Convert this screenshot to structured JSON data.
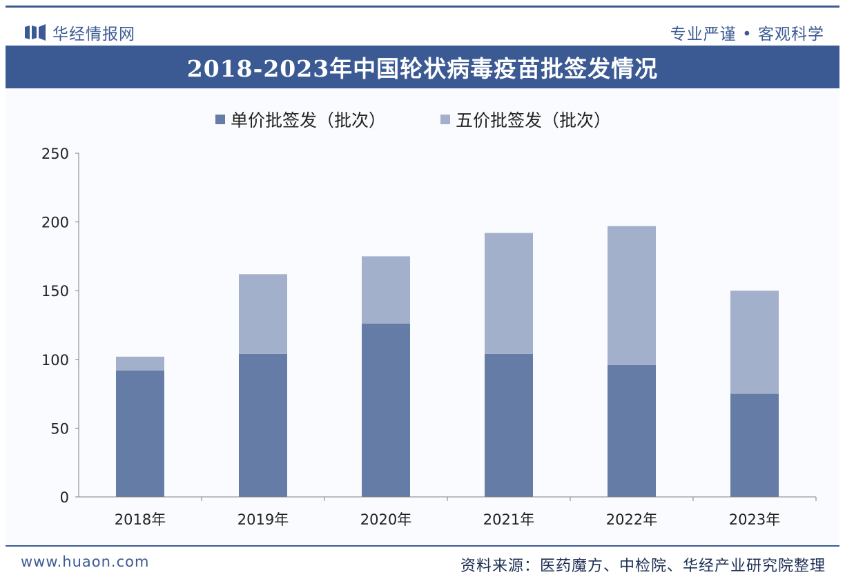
{
  "header": {
    "brand": "华经情报网",
    "slogan": "专业严谨 • 客观科学"
  },
  "colors": {
    "primary": "#3b5a94",
    "monovalent": "#657ca7",
    "pentavalent": "#a2b0cb"
  },
  "chart_data": {
    "type": "bar",
    "stacked": true,
    "title": "2018-2023年中国轮状病毒疫苗批签发情况",
    "categories": [
      "2018年",
      "2019年",
      "2020年",
      "2021年",
      "2022年",
      "2023年"
    ],
    "series": [
      {
        "name": "单价批签发（批次）",
        "values": [
          92,
          104,
          126,
          104,
          96,
          75
        ]
      },
      {
        "name": "五价批签发（批次）",
        "values": [
          10,
          58,
          49,
          88,
          101,
          75
        ]
      }
    ],
    "yticks": [
      "0",
      "50",
      "100",
      "150",
      "200",
      "250"
    ],
    "ylim": [
      0,
      250
    ],
    "xlabel": "",
    "ylabel": "",
    "legend": "top"
  },
  "footer": {
    "website": "www.huaon.com",
    "source": "资料来源：医药魔方、中检院、华经产业研究院整理"
  }
}
